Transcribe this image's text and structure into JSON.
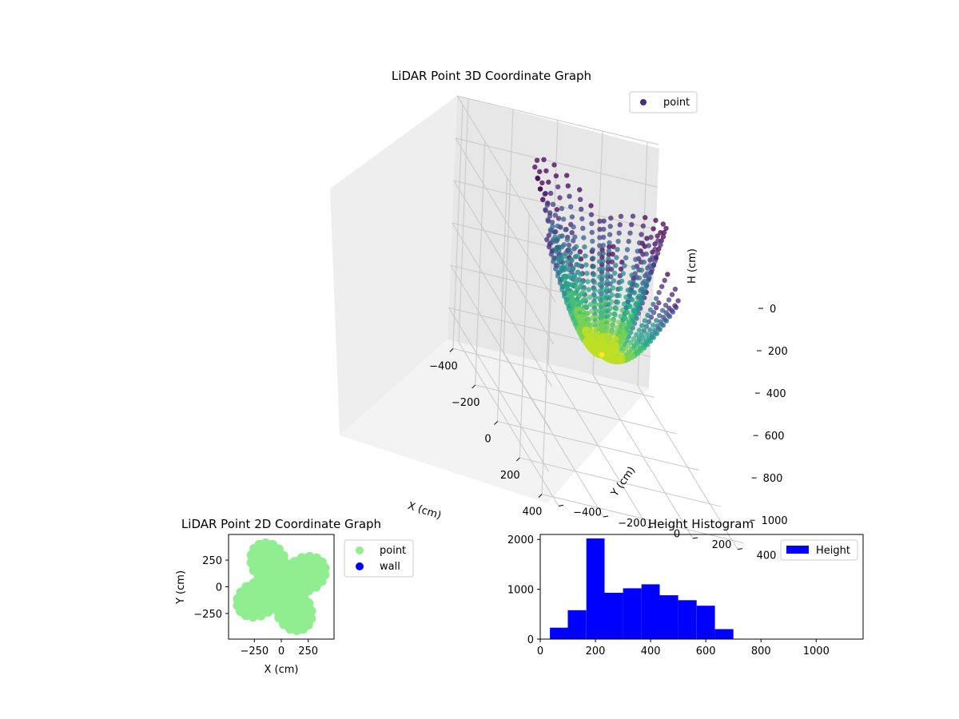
{
  "colors": {
    "point_3d_legend": "#472d7b",
    "point_2d": "#90ee90",
    "wall_2d": "#0000ff",
    "histogram": "#0000ff",
    "pane": "#f2f2f2",
    "grid": "#c8c8c8"
  },
  "chart_data": [
    {
      "type": "scatter3d",
      "title": "LiDAR Point 3D Coordinate Graph",
      "xlabel": "X (cm)",
      "ylabel": "Y (cm)",
      "zlabel": "H (cm)",
      "x_ticks": [
        "−400",
        "−200",
        "0",
        "200",
        "400"
      ],
      "y_ticks": [
        "−400",
        "−200",
        "0",
        "200",
        "400"
      ],
      "z_ticks": [
        "0",
        "200",
        "400",
        "600",
        "800",
        "1000"
      ],
      "xlim": [
        -450,
        450
      ],
      "ylim": [
        -450,
        450
      ],
      "zlim": [
        0,
        1150
      ],
      "z_inverted": true,
      "colormap": "viridis",
      "legend": [
        {
          "label": "point"
        }
      ],
      "legend_position": "top-right"
    },
    {
      "type": "scatter",
      "title": "LiDAR Point 2D Coordinate Graph",
      "xlabel": "X (cm)",
      "ylabel": "Y (cm)",
      "x_ticks": [
        "−250",
        "0",
        "250"
      ],
      "y_ticks": [
        "250",
        "0",
        "−250"
      ],
      "xlim": [
        -490,
        490
      ],
      "ylim": [
        -490,
        490
      ],
      "legend": [
        {
          "label": "point"
        },
        {
          "label": "wall"
        }
      ],
      "legend_position": "outside-right"
    },
    {
      "type": "bar",
      "title": "Height Histogram",
      "x_ticks": [
        "0",
        "200",
        "400",
        "600",
        "800",
        "1000"
      ],
      "y_ticks": [
        "0",
        "1000",
        "2000"
      ],
      "xlim": [
        0,
        1170
      ],
      "ylim": [
        0,
        2100
      ],
      "bin_edges": [
        35,
        100,
        167,
        233,
        300,
        367,
        433,
        500,
        567,
        633,
        700,
        767,
        833,
        900,
        967,
        1033,
        1100
      ],
      "values": [
        230,
        580,
        2020,
        930,
        1020,
        1100,
        880,
        780,
        670,
        200,
        0,
        0,
        0,
        0,
        0,
        0
      ],
      "legend": [
        {
          "label": "Height"
        }
      ],
      "legend_position": "top-right"
    }
  ]
}
